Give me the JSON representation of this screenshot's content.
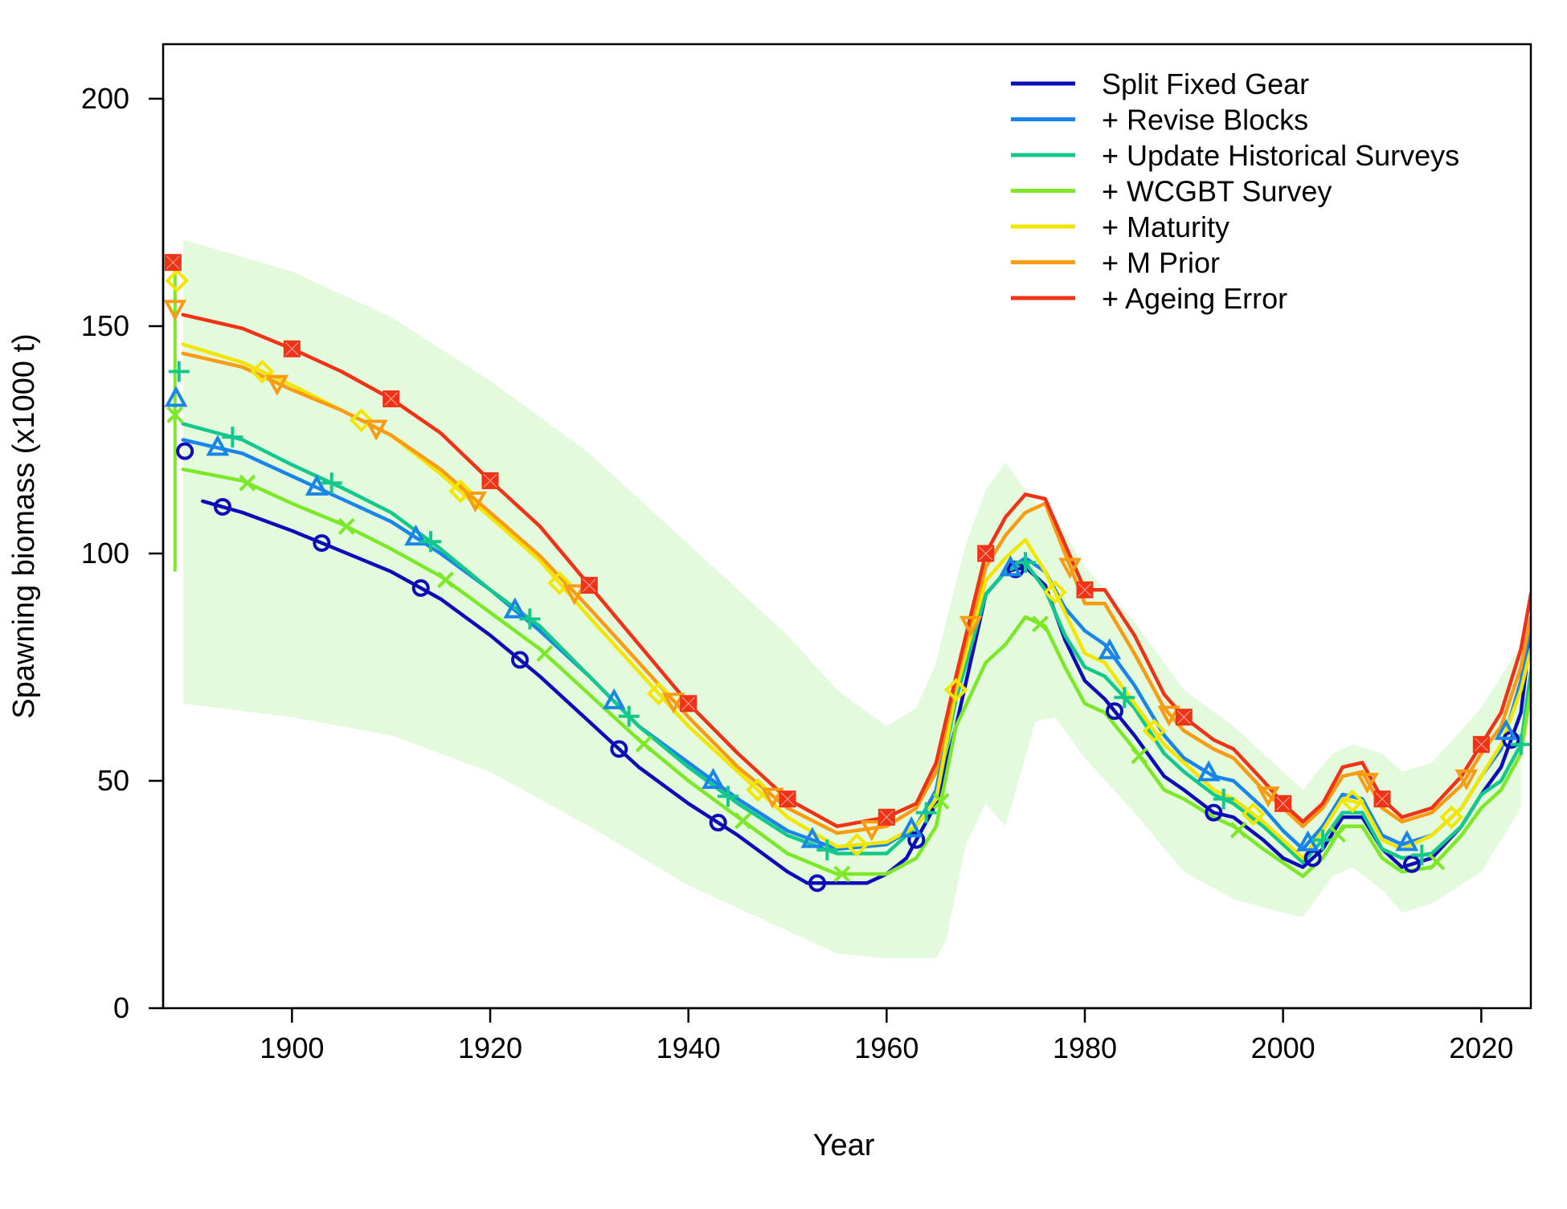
{
  "chart_data": {
    "type": "line",
    "xlabel": "Year",
    "ylabel": "Spawning biomass (x1000 t)",
    "xlim": [
      1887,
      2025
    ],
    "ylim": [
      0,
      212
    ],
    "x_ticks": [
      1900,
      1920,
      1940,
      1960,
      1980,
      2000,
      2020
    ],
    "y_ticks": [
      0,
      50,
      100,
      150,
      200
    ],
    "grid": false,
    "legend_position": "top-right",
    "uncertainty_band": {
      "color": "#ccf5c0",
      "years": [
        1889,
        1900,
        1910,
        1920,
        1930,
        1940,
        1950,
        1955,
        1960,
        1963,
        1965,
        1966,
        1968,
        1970,
        1972,
        1975,
        1977,
        1980,
        1985,
        1990,
        1995,
        2000,
        2002,
        2005,
        2007,
        2010,
        2012,
        2015,
        2020,
        2024
      ],
      "upper": [
        169,
        162,
        152,
        138,
        122,
        102,
        82,
        70,
        62,
        66,
        76,
        85,
        102,
        114,
        120,
        111,
        108,
        97,
        85,
        70,
        62,
        52,
        48,
        56,
        58,
        56,
        52,
        54,
        66,
        80
      ],
      "lower": [
        67,
        64,
        60,
        52,
        40,
        27,
        17,
        12,
        11,
        11,
        11,
        15,
        36,
        45,
        40,
        63,
        64,
        55,
        43,
        30,
        24,
        21,
        20,
        29,
        31,
        26,
        21,
        23,
        30,
        44
      ]
    },
    "series": [
      {
        "name": "Split Fixed Gear",
        "color": "#0d0db8",
        "marker": "circle",
        "initial": 122.5,
        "x": [
          1891,
          1895,
          1900,
          1905,
          1910,
          1915,
          1920,
          1925,
          1930,
          1935,
          1940,
          1945,
          1950,
          1952,
          1955,
          1958,
          1960,
          1962,
          1965,
          1967,
          1970,
          1972,
          1974,
          1976,
          1978,
          1980,
          1982,
          1985,
          1988,
          1990,
          1993,
          1995,
          1998,
          2000,
          2002,
          2004,
          2006,
          2008,
          2010,
          2012,
          2015,
          2018,
          2020,
          2022,
          2024,
          2025
        ],
        "y": [
          111.5,
          109,
          105,
          100.5,
          96,
          90,
          82,
          73,
          63,
          53,
          45,
          38,
          30,
          27.5,
          27.5,
          27.5,
          29.5,
          33,
          45,
          62,
          91,
          96,
          97,
          93,
          81,
          72,
          68,
          60,
          51,
          48,
          43,
          42,
          37,
          33,
          31,
          35,
          42,
          42,
          35,
          31,
          33,
          40,
          47,
          53,
          65,
          83
        ]
      },
      {
        "name": "+ Revise Blocks",
        "color": "#1a85e8",
        "marker": "triangle",
        "initial": 134,
        "x": [
          1889,
          1895,
          1900,
          1905,
          1910,
          1915,
          1920,
          1925,
          1930,
          1935,
          1940,
          1945,
          1950,
          1955,
          1960,
          1963,
          1965,
          1967,
          1970,
          1972,
          1974,
          1976,
          1978,
          1980,
          1982,
          1985,
          1988,
          1990,
          1993,
          1995,
          1998,
          2000,
          2002,
          2004,
          2006,
          2008,
          2010,
          2012,
          2015,
          2018,
          2020,
          2022,
          2024,
          2025
        ],
        "y": [
          125,
          122,
          117,
          112,
          107,
          100,
          92,
          83,
          73,
          62,
          54,
          46,
          39,
          35,
          36,
          40,
          48,
          70,
          91,
          96,
          99,
          96,
          88,
          83,
          80,
          71,
          60,
          55,
          51,
          50,
          44,
          39,
          35,
          40,
          47,
          46,
          38,
          36,
          38,
          44,
          51,
          57,
          72,
          84
        ]
      },
      {
        "name": "+ Update Historical Surveys",
        "color": "#14c88c",
        "marker": "plus",
        "initial": 140,
        "x": [
          1889,
          1895,
          1900,
          1905,
          1910,
          1915,
          1920,
          1925,
          1930,
          1935,
          1940,
          1945,
          1950,
          1955,
          1960,
          1963,
          1965,
          1967,
          1970,
          1972,
          1974,
          1976,
          1978,
          1980,
          1982,
          1985,
          1988,
          1990,
          1993,
          1995,
          1998,
          2000,
          2002,
          2004,
          2006,
          2008,
          2010,
          2012,
          2015,
          2018,
          2020,
          2022,
          2024,
          2025
        ],
        "y": [
          128.5,
          125,
          119.5,
          114.5,
          109,
          101,
          92,
          84,
          73,
          62,
          53,
          45,
          38,
          34,
          34,
          40,
          46,
          68,
          91,
          96,
          98,
          92,
          82,
          75,
          73,
          66,
          56,
          52,
          47,
          45,
          40,
          36,
          32,
          37,
          43,
          43,
          35,
          33,
          34,
          40,
          47,
          50,
          58,
          74
        ]
      },
      {
        "name": "+ WCGBT Survey",
        "color": "#7de82a",
        "marker": "x",
        "initial": 130.5,
        "x": [
          1889,
          1895,
          1900,
          1905,
          1910,
          1915,
          1920,
          1925,
          1930,
          1935,
          1940,
          1945,
          1950,
          1955,
          1960,
          1963,
          1965,
          1967,
          1970,
          1972,
          1974,
          1976,
          1978,
          1980,
          1982,
          1985,
          1988,
          1990,
          1993,
          1995,
          1998,
          2000,
          2002,
          2004,
          2006,
          2008,
          2010,
          2012,
          2015,
          2018,
          2020,
          2022,
          2024,
          2025
        ],
        "y": [
          118.5,
          116,
          111,
          106.5,
          101,
          95,
          87,
          79,
          69,
          59,
          50,
          42,
          34,
          29.5,
          29.5,
          33,
          40,
          62,
          76,
          80,
          86,
          84,
          75,
          67,
          65,
          57,
          48,
          46,
          42,
          40,
          35,
          32,
          29,
          33,
          40,
          40,
          33,
          30,
          31,
          38,
          44,
          48,
          56,
          70
        ]
      },
      {
        "name": "+ Maturity",
        "color": "#f2e600",
        "marker": "diamond",
        "initial": 160,
        "x": [
          1889,
          1895,
          1900,
          1905,
          1910,
          1915,
          1920,
          1925,
          1930,
          1935,
          1940,
          1945,
          1950,
          1955,
          1960,
          1963,
          1965,
          1967,
          1970,
          1972,
          1974,
          1976,
          1978,
          1980,
          1982,
          1985,
          1988,
          1990,
          1993,
          1995,
          1998,
          2000,
          2002,
          2004,
          2006,
          2008,
          2010,
          2012,
          2015,
          2018,
          2020,
          2022,
          2024,
          2025
        ],
        "y": [
          146,
          142,
          137,
          131.5,
          126,
          117.5,
          108,
          98.5,
          86,
          74,
          62,
          52,
          42,
          35.5,
          36.5,
          40,
          46,
          70,
          94,
          99,
          103,
          96,
          87,
          78,
          76,
          67,
          58,
          54,
          48,
          46,
          41,
          37,
          33,
          39,
          46,
          45,
          37,
          35,
          38,
          44,
          51,
          58,
          70,
          79
        ]
      },
      {
        "name": "+ M Prior",
        "color": "#fa9b14",
        "marker": "triangle-down",
        "initial": 154,
        "x": [
          1889,
          1895,
          1900,
          1905,
          1910,
          1915,
          1920,
          1925,
          1930,
          1935,
          1940,
          1945,
          1950,
          1955,
          1960,
          1963,
          1965,
          1967,
          1970,
          1972,
          1974,
          1976,
          1978,
          1980,
          1982,
          1985,
          1988,
          1990,
          1993,
          1995,
          1998,
          2000,
          2002,
          2004,
          2006,
          2008,
          2010,
          2012,
          2015,
          2018,
          2020,
          2022,
          2024,
          2025
        ],
        "y": [
          144,
          141,
          136,
          131.5,
          126,
          118.5,
          109,
          99.5,
          88,
          76,
          64,
          53,
          44,
          38.5,
          40,
          44,
          52,
          72,
          97,
          104,
          109,
          111,
          100,
          89,
          89,
          78,
          66,
          61,
          57,
          55,
          48,
          44,
          40,
          44,
          51,
          52,
          44,
          41,
          43,
          49,
          56,
          62,
          75,
          86
        ]
      },
      {
        "name": "+ Ageing Error",
        "color": "#f03216",
        "marker": "square",
        "initial": 164,
        "x": [
          1889,
          1895,
          1900,
          1905,
          1910,
          1915,
          1920,
          1925,
          1930,
          1935,
          1940,
          1945,
          1950,
          1955,
          1960,
          1963,
          1965,
          1967,
          1970,
          1972,
          1974,
          1976,
          1978,
          1980,
          1982,
          1985,
          1988,
          1990,
          1993,
          1995,
          1998,
          2000,
          2002,
          2004,
          2006,
          2008,
          2010,
          2012,
          2015,
          2018,
          2020,
          2022,
          2024,
          2025
        ],
        "y": [
          152.5,
          149.5,
          145,
          140,
          134,
          126.5,
          116,
          106,
          93,
          80,
          67,
          56,
          46,
          40,
          42,
          45,
          54,
          73,
          100,
          108,
          113,
          112,
          102,
          92,
          92,
          82,
          69,
          64,
          59,
          57,
          50,
          45,
          41,
          45,
          53,
          54,
          46,
          42,
          44,
          51,
          58,
          65,
          79,
          91
        ]
      }
    ]
  }
}
